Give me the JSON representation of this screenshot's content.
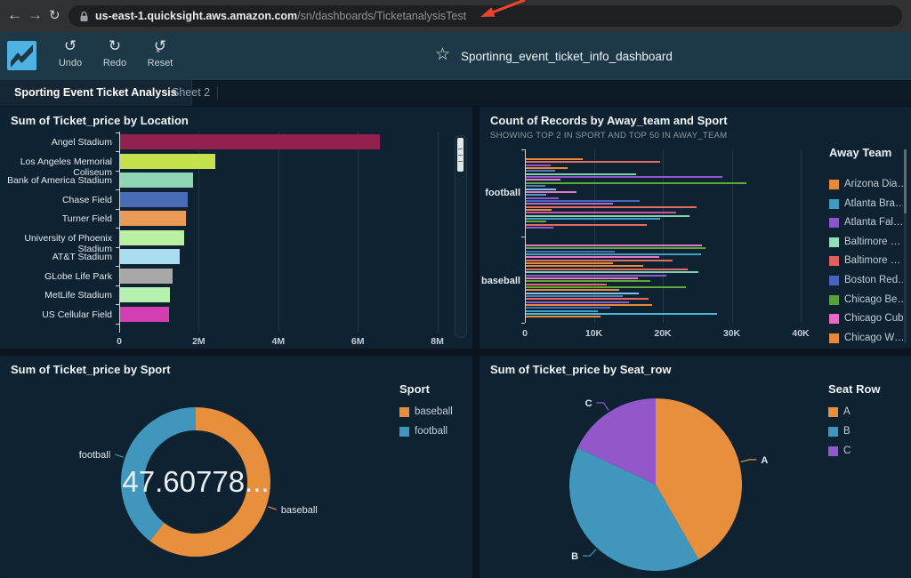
{
  "browser": {
    "url_host": "us-east-1.quicksight.aws.amazon.com",
    "url_path": "/sn/dashboards/TicketanalysisTest"
  },
  "toolbar": {
    "undo": "Undo",
    "redo": "Redo",
    "reset": "Reset",
    "dashboard_title": "Sportinng_event_ticket_info_dashboard"
  },
  "tabs": {
    "active": "Sporting Event Ticket Analysis",
    "inactive": "Sheet 2"
  },
  "annotation": {
    "color": "#e8432e"
  },
  "chart_data": [
    {
      "id": "sum-ticket-price-by-location",
      "type": "bar",
      "orientation": "horizontal",
      "title": "Sum of Ticket_price by Location",
      "categories": [
        "Angel Stadium",
        "Los Angeles Memorial Coliseum",
        "Bank of America Stadium",
        "Chase Field",
        "Turner Field",
        "University of Phoenix Stadium",
        "AT&T Stadium",
        "GLobe Life Park",
        "MetLife Stadium",
        "US Cellular Field"
      ],
      "values": [
        6540000,
        2400000,
        1840000,
        1710000,
        1660000,
        1620000,
        1510000,
        1310000,
        1260000,
        1240000
      ],
      "colors": [
        "#92204f",
        "#c6e14b",
        "#8fd6b4",
        "#4a6bb5",
        "#eb9b55",
        "#b9f0a2",
        "#a9ddf0",
        "#a8a8a8",
        "#b5f2ad",
        "#d33fb2"
      ],
      "xlim": [
        0,
        8300000
      ],
      "x_ticks": [
        {
          "label": "0",
          "value": 0
        },
        {
          "label": "2M",
          "value": 2000000
        },
        {
          "label": "4M",
          "value": 4000000
        },
        {
          "label": "6M",
          "value": 6000000
        },
        {
          "label": "8M",
          "value": 8000000
        }
      ],
      "grid": true
    },
    {
      "id": "count-records-by-away-team-and-sport",
      "type": "bar",
      "orientation": "horizontal",
      "title": "Count of Records by Away_team and Sport",
      "subtitle": "SHOWING TOP 2 IN SPORT AND TOP 50 IN AWAY_TEAM",
      "xlim": [
        0,
        42000
      ],
      "x_ticks": [
        {
          "label": "0",
          "value": 0
        },
        {
          "label": "10K",
          "value": 10000
        },
        {
          "label": "20K",
          "value": 20000
        },
        {
          "label": "30K",
          "value": 30000
        },
        {
          "label": "40K",
          "value": 40000
        }
      ],
      "grid": true,
      "groups": [
        {
          "label": "football",
          "bars": [
            {
              "c": "#e8893a",
              "v": 8200
            },
            {
              "c": "#e36c62",
              "v": 19500
            },
            {
              "c": "#9257c8",
              "v": 3600
            },
            {
              "c": "#e8893a",
              "v": 6000
            },
            {
              "c": "#5878b8",
              "v": 4200
            },
            {
              "c": "#7ed0b0",
              "v": 16000
            },
            {
              "c": "#9257c8",
              "v": 28500
            },
            {
              "c": "#e678c8",
              "v": 5000
            },
            {
              "c": "#5fa83c",
              "v": 32000
            },
            {
              "c": "#5878b8",
              "v": 2800
            },
            {
              "c": "#7cc3e8",
              "v": 4400
            },
            {
              "c": "#e678c8",
              "v": 7400
            },
            {
              "c": "#45a0c0",
              "v": 3000
            },
            {
              "c": "#9257c8",
              "v": 4800
            },
            {
              "c": "#4a68c0",
              "v": 16500
            },
            {
              "c": "#b06cd8",
              "v": 12600
            },
            {
              "c": "#e36c62",
              "v": 24800
            },
            {
              "c": "#e8893a",
              "v": 3800
            },
            {
              "c": "#d84f9f",
              "v": 21800
            },
            {
              "c": "#7ed0b0",
              "v": 23800
            },
            {
              "c": "#45a0c0",
              "v": 19500
            },
            {
              "c": "#5fa83c",
              "v": 3000
            },
            {
              "c": "#e36c62",
              "v": 17500
            },
            {
              "c": "#9257c8",
              "v": 4000
            }
          ]
        },
        {
          "label": "baseball",
          "bars": [
            {
              "c": "#e678c8",
              "v": 25600
            },
            {
              "c": "#5fa83c",
              "v": 26000
            },
            {
              "c": "#4a68c0",
              "v": 12900
            },
            {
              "c": "#45a0c0",
              "v": 25400
            },
            {
              "c": "#e678c8",
              "v": 19300
            },
            {
              "c": "#e36c62",
              "v": 21300
            },
            {
              "c": "#e8893a",
              "v": 12700
            },
            {
              "c": "#e8893a",
              "v": 17000
            },
            {
              "c": "#e36c62",
              "v": 23500
            },
            {
              "c": "#7ed0b0",
              "v": 25000
            },
            {
              "c": "#9257c8",
              "v": 20400
            },
            {
              "c": "#e678c8",
              "v": 16300
            },
            {
              "c": "#5fa83c",
              "v": 18000
            },
            {
              "c": "#e36c62",
              "v": 11700
            },
            {
              "c": "#5fa83c",
              "v": 23200
            },
            {
              "c": "#e8893a",
              "v": 13500
            },
            {
              "c": "#7cc3e8",
              "v": 16400
            },
            {
              "c": "#5878b8",
              "v": 14000
            },
            {
              "c": "#e36c62",
              "v": 17800
            },
            {
              "c": "#9257c8",
              "v": 15000
            },
            {
              "c": "#e8893a",
              "v": 18300
            },
            {
              "c": "#4a68c0",
              "v": 12200
            },
            {
              "c": "#45a0c0",
              "v": 10400
            },
            {
              "c": "#4ab8d8",
              "v": 27800
            },
            {
              "c": "#e8893a",
              "v": 10800
            }
          ]
        }
      ],
      "legend": {
        "title": "Away Team",
        "items": [
          {
            "label": "Arizona Dia…",
            "color": "#e8893a"
          },
          {
            "label": "Atlanta Bra…",
            "color": "#3f9dbf"
          },
          {
            "label": "Atlanta Fal…",
            "color": "#8d55cc"
          },
          {
            "label": "Baltimore …",
            "color": "#90dfb8"
          },
          {
            "label": "Baltimore …",
            "color": "#e26060"
          },
          {
            "label": "Boston Red…",
            "color": "#4a63c0"
          },
          {
            "label": "Chicago Be…",
            "color": "#58a03a"
          },
          {
            "label": "Chicago Cubs",
            "color": "#e66ac8"
          },
          {
            "label": "Chicago W…",
            "color": "#e8893a"
          }
        ]
      }
    },
    {
      "id": "sum-ticket-price-by-sport",
      "type": "donut",
      "title": "Sum of Ticket_price by Sport",
      "center_label": "47.60778...",
      "slices": [
        {
          "label": "baseball",
          "pct": 60.5,
          "color": "#e88f3e"
        },
        {
          "label": "football",
          "pct": 39.5,
          "color": "#4196be"
        }
      ],
      "legend": {
        "title": "Sport",
        "items": [
          {
            "label": "baseball",
            "color": "#e88f3e"
          },
          {
            "label": "football",
            "color": "#4196be"
          }
        ]
      }
    },
    {
      "id": "sum-ticket-price-by-seat-row",
      "type": "pie",
      "title": "Sum of Ticket_price by Seat_row",
      "slices": [
        {
          "label": "A",
          "pct": 41.7,
          "color": "#e88f3e"
        },
        {
          "label": "B",
          "pct": 40.3,
          "color": "#4196be"
        },
        {
          "label": "C",
          "pct": 18.0,
          "color": "#9257c8"
        }
      ],
      "legend": {
        "title": "Seat Row",
        "items": [
          {
            "label": "A",
            "color": "#e88f3e"
          },
          {
            "label": "B",
            "color": "#4196be"
          },
          {
            "label": "C",
            "color": "#9257c8"
          }
        ]
      }
    }
  ]
}
